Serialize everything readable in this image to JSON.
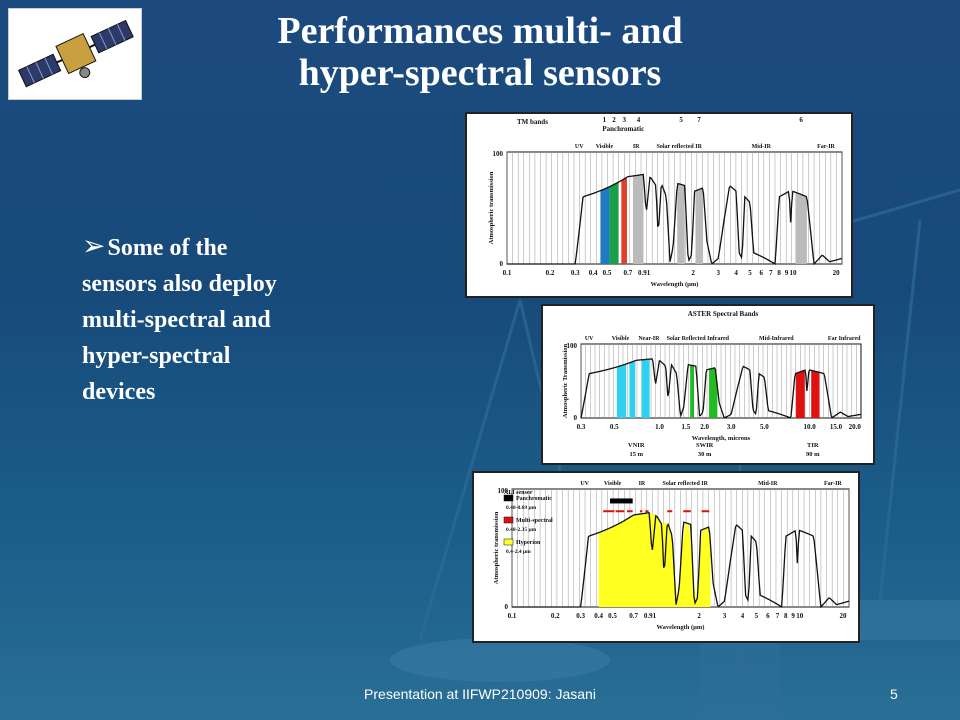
{
  "slide": {
    "title_line1": "Performances multi- and",
    "title_line2": "hyper-spectral sensors",
    "bullet_text": "Some of the sensors also deploy multi-spectral and hyper-spectral devices",
    "footer": "Presentation at IIFWP210909: Jasani",
    "page_number": "5",
    "colors": {
      "background": "#1d4a7e",
      "text": "#ffffff"
    }
  },
  "logo": {
    "icon": "satellite-icon"
  },
  "chart_data": [
    {
      "type": "area",
      "title": "TM bands",
      "band_numbers": [
        "1",
        "2",
        "3",
        "4",
        "5",
        "7",
        "6"
      ],
      "band_label": "Panchromatic",
      "regions": [
        "UV",
        "Visible",
        "IR",
        "Solar reflected IR",
        "Mid-IR",
        "Far-IR"
      ],
      "ylabel": "Atmospheric transmission",
      "xlabel": "Wavelength (µm)",
      "y_ticks": [
        "100",
        "0"
      ],
      "ylim": [
        0,
        100
      ],
      "x_ticks": [
        "0.1",
        "0.2",
        "0.3",
        "0.4",
        "0.5",
        "0.7",
        "0.91",
        "2",
        "3",
        "4",
        "5",
        "6",
        "7",
        "8",
        "9",
        "10",
        "20"
      ],
      "x_scale": "log",
      "bands": [
        {
          "start": 0.45,
          "end": 0.52,
          "color": "#1f7ac2"
        },
        {
          "start": 0.52,
          "end": 0.6,
          "color": "#1aa04a"
        },
        {
          "start": 0.63,
          "end": 0.69,
          "color": "#e0402a"
        },
        {
          "start": 0.76,
          "end": 0.9,
          "color": "#bbbbbb"
        },
        {
          "start": 1.55,
          "end": 1.75,
          "color": "#bbbbbb"
        },
        {
          "start": 2.08,
          "end": 2.35,
          "color": "#bbbbbb"
        },
        {
          "start": 10.4,
          "end": 12.5,
          "color": "#bbbbbb"
        }
      ]
    },
    {
      "type": "area",
      "title": "ASTER Spectral Bands",
      "regions": [
        "UV",
        "Visible",
        "Near-IR",
        "Solar Reflected Infrared",
        "Mid-Infrared",
        "Far Infrared"
      ],
      "ylabel": "Atmospheric Transmission",
      "xlabel": "Wavelength, microns",
      "y_ticks": [
        "100",
        "0"
      ],
      "ylim": [
        0,
        100
      ],
      "x_ticks": [
        "0.3",
        "0.5",
        "1.0",
        "1.5",
        "2.0",
        "3.0",
        "5.0",
        "10.0",
        "15.0",
        "20.0"
      ],
      "x_scale": "log",
      "groups": [
        {
          "name": "VNIR",
          "resolution": "15 m"
        },
        {
          "name": "SWIR",
          "resolution": "30 m"
        },
        {
          "name": "TIR",
          "resolution": "90 m"
        }
      ],
      "bands": [
        {
          "start": 0.52,
          "end": 0.6,
          "color": "#30d0f0"
        },
        {
          "start": 0.63,
          "end": 0.69,
          "color": "#30d0f0"
        },
        {
          "start": 0.76,
          "end": 0.86,
          "color": "#30d0f0"
        },
        {
          "start": 1.6,
          "end": 1.7,
          "color": "#22bb22"
        },
        {
          "start": 2.14,
          "end": 2.43,
          "color": "#22bb22"
        },
        {
          "start": 8.12,
          "end": 9.28,
          "color": "#dd1111"
        },
        {
          "start": 10.25,
          "end": 11.65,
          "color": "#dd1111"
        }
      ]
    },
    {
      "type": "area",
      "title": "",
      "regions": [
        "UV",
        "Visible",
        "IR",
        "Solar reflected IR",
        "Mid-IR",
        "Far-IR"
      ],
      "ylabel": "Atmospheric transmission",
      "xlabel": "Wavelength (µm)",
      "y_ticks": [
        "100",
        "0"
      ],
      "ylim": [
        0,
        100
      ],
      "x_ticks": [
        "0.1",
        "0.2",
        "0.3",
        "0.4",
        "0.5",
        "0.7",
        "0.91",
        "2",
        "3",
        "4",
        "5",
        "6",
        "7",
        "8",
        "9",
        "10",
        "20"
      ],
      "x_scale": "log",
      "legend_title": "ALI sensor",
      "legend": [
        {
          "name": "Panchromatic",
          "range": "0.48-0.69 µm",
          "color": "#000000"
        },
        {
          "name": "Multi-spectral",
          "range": "0.48-2.35 µm",
          "color": "#dd1111"
        },
        {
          "name": "Hyperion",
          "range": "0.4-2.4 µm",
          "color": "#ffff22"
        }
      ],
      "bands": [
        {
          "start": 0.4,
          "end": 2.4,
          "color": "#ffff22"
        }
      ]
    }
  ]
}
